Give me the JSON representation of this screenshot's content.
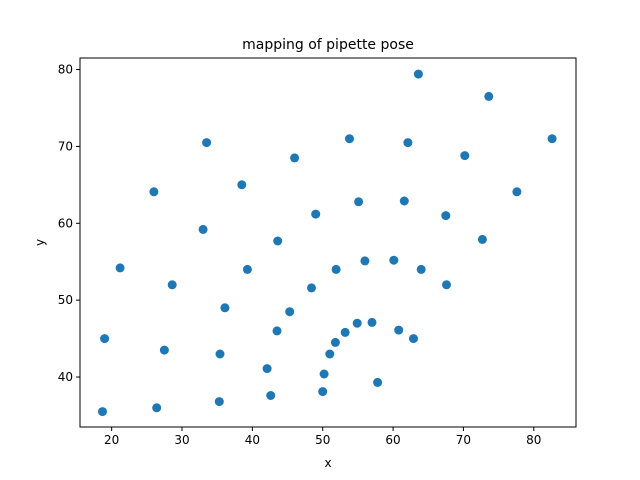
{
  "chart_data": {
    "type": "scatter",
    "title": "mapping of pipette pose",
    "xlabel": "x",
    "ylabel": "y",
    "xlim": [
      15.5,
      86
    ],
    "ylim": [
      33.5,
      81.5
    ],
    "xticks": [
      20,
      30,
      40,
      50,
      60,
      70,
      80
    ],
    "yticks": [
      40,
      50,
      60,
      70,
      80
    ],
    "grid": false,
    "marker_color": "#1f77b4",
    "x": [
      18.7,
      19.0,
      21.2,
      26.0,
      26.4,
      27.5,
      28.6,
      33.0,
      33.5,
      35.3,
      35.4,
      36.1,
      38.5,
      39.3,
      42.1,
      42.6,
      43.5,
      43.6,
      45.3,
      46.0,
      48.4,
      49.0,
      50.0,
      50.2,
      51.0,
      51.8,
      51.9,
      53.2,
      53.8,
      54.9,
      55.1,
      56.0,
      57.0,
      57.8,
      60.1,
      60.8,
      61.6,
      62.1,
      62.9,
      63.6,
      64.0,
      67.5,
      67.6,
      70.2,
      72.7,
      73.6,
      77.6,
      82.6
    ],
    "y": [
      35.5,
      45.0,
      54.2,
      64.1,
      36.0,
      43.5,
      52.0,
      59.2,
      70.5,
      36.8,
      43.0,
      49.0,
      65.0,
      54.0,
      41.1,
      37.6,
      46.0,
      57.7,
      48.5,
      68.5,
      51.6,
      61.2,
      38.1,
      40.4,
      43.0,
      44.5,
      54.0,
      45.8,
      71.0,
      47.0,
      62.8,
      55.1,
      47.1,
      39.3,
      55.2,
      46.1,
      62.9,
      70.5,
      45.0,
      79.4,
      54.0,
      61.0,
      52.0,
      68.8,
      57.9,
      76.5,
      64.1,
      71.0
    ]
  }
}
